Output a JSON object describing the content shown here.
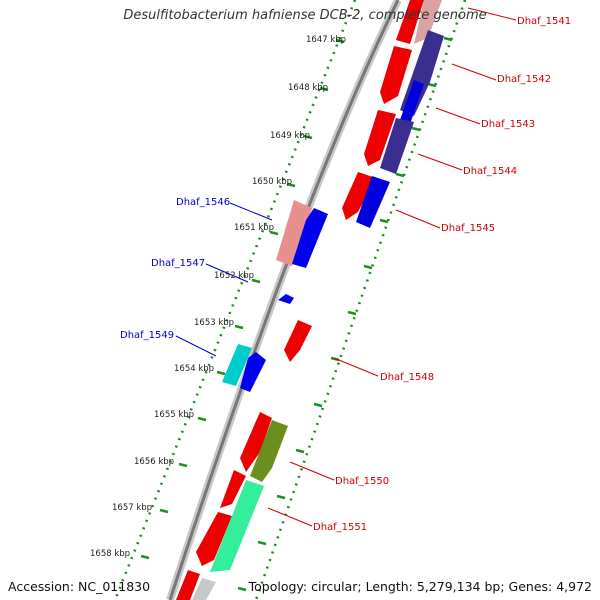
{
  "title": "Desulfitobacterium hafniense DCB-2, complete genome",
  "footer": {
    "accession": "Accession: NC_011830",
    "summary": "Topology: circular; Length: 5,279,134 bp; Genes: 4,972"
  },
  "colors": {
    "background": "#ffffff",
    "backbone": "#888888",
    "ticks_outer": "#1f8f1f",
    "ticks_inner": "#1f8f1f",
    "label_forward": "#cc0000",
    "label_reverse": "#0000cc"
  },
  "scale_labels": [
    "1647 kbp",
    "1648 kbp",
    "1649 kbp",
    "1650 kbp",
    "1651 kbp",
    "1652 kbp",
    "1653 kbp",
    "1654 kbp",
    "1655 kbp",
    "1656 kbp",
    "1657 kbp",
    "1658 kbp"
  ],
  "gene_labels_right": [
    "Dhaf_1541",
    "Dhaf_1542",
    "Dhaf_1543",
    "Dhaf_1544",
    "Dhaf_1545",
    "Dhaf_1548",
    "Dhaf_1550",
    "Dhaf_1551"
  ],
  "gene_labels_left": [
    "Dhaf_1546",
    "Dhaf_1547",
    "Dhaf_1549"
  ]
}
